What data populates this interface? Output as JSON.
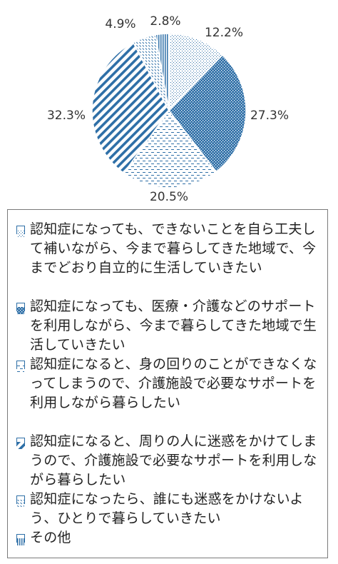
{
  "chart_data": {
    "type": "pie",
    "slices": [
      {
        "label": "認知症になっても、できないことを自ら工夫して補いながら、今まで暮らしてきた地域で、今までどおり自立的に生活していきたい",
        "value": 12.2,
        "value_label": "12.2%",
        "pattern": "dots-light"
      },
      {
        "label": "認知症になっても、医療・介護などのサポートを利用しながら、今まで暮らしてきた地域で生活していきたい",
        "value": 27.3,
        "value_label": "27.3%",
        "pattern": "dots-dense"
      },
      {
        "label": "認知症になると、身の回りのことができなくなってしまうので、介護施設で必要なサポートを利用しながら暮らしたい",
        "value": 20.5,
        "value_label": "20.5%",
        "pattern": "dashes"
      },
      {
        "label": "認知症になると、周りの人に迷惑をかけてしまうので、介護施設で必要なサポートを利用しながら暮らしたい",
        "value": 32.3,
        "value_label": "32.3%",
        "pattern": "diagonal"
      },
      {
        "label": "認知症になったら、誰にも迷惑をかけないよう、ひとりで暮らしていきたい",
        "value": 4.9,
        "value_label": "4.9%",
        "pattern": "diagonal-dash"
      },
      {
        "label": "その他",
        "value": 2.8,
        "value_label": "2.8%",
        "pattern": "vertical"
      }
    ],
    "start_angle": "12 o'clock",
    "direction": "clockwise",
    "legend_position": "bottom",
    "colors": {
      "primary": "#2e6fa7",
      "background": "#ffffff",
      "border": "#ffffff"
    }
  }
}
